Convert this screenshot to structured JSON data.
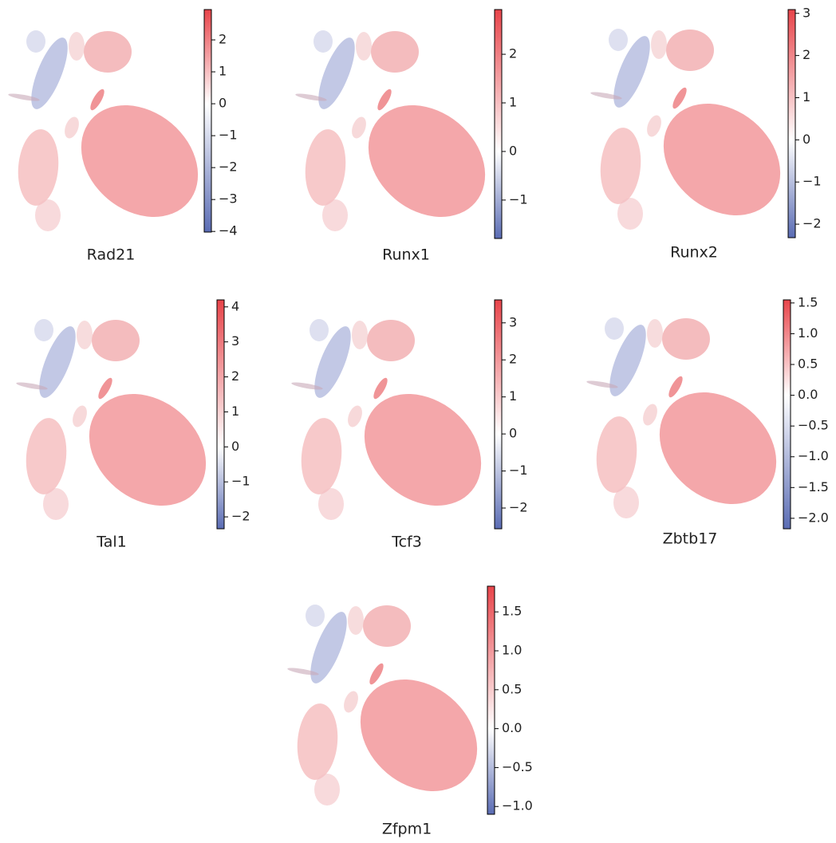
{
  "chart_data": [
    {
      "type": "embedding",
      "title": "Rad21",
      "colors": [
        "#5a6cb4",
        "#ffffff",
        "#e8444a"
      ],
      "clim": [
        -4.02,
        2.95
      ],
      "cticks": [
        {
          "value": -4,
          "label": "−4"
        },
        {
          "value": -3,
          "label": "−3"
        },
        {
          "value": -2,
          "label": "−2"
        },
        {
          "value": -1,
          "label": "−1"
        },
        0,
        1,
        2
      ]
    },
    {
      "type": "embedding",
      "title": "Runx1",
      "colors": [
        "#5a6cb4",
        "#ffffff",
        "#e8444a"
      ],
      "clim": [
        -1.79,
        2.92
      ],
      "cticks": [
        {
          "value": -1,
          "label": "−1"
        },
        0,
        1,
        2
      ]
    },
    {
      "type": "embedding",
      "title": "Runx2",
      "colors": [
        "#5a6cb4",
        "#ffffff",
        "#e8444a"
      ],
      "clim": [
        -2.32,
        3.09
      ],
      "cticks": [
        {
          "value": -2,
          "label": "−2"
        },
        {
          "value": -1,
          "label": "−1"
        },
        0,
        1,
        2,
        3
      ]
    },
    {
      "type": "embedding",
      "title": "Tal1",
      "colors": [
        "#5a6cb4",
        "#ffffff",
        "#e8444a"
      ],
      "clim": [
        -2.34,
        4.2
      ],
      "cticks": [
        {
          "value": -2,
          "label": "−2"
        },
        {
          "value": -1,
          "label": "−1"
        },
        0,
        1,
        2,
        3,
        4
      ]
    },
    {
      "type": "embedding",
      "title": "Tcf3",
      "colors": [
        "#5a6cb4",
        "#ffffff",
        "#e8444a"
      ],
      "clim": [
        -2.56,
        3.62
      ],
      "cticks": [
        {
          "value": -2,
          "label": "−2"
        },
        {
          "value": -1,
          "label": "−1"
        },
        0,
        1,
        2,
        3
      ]
    },
    {
      "type": "embedding",
      "title": "Zbtb17",
      "colors": [
        "#5a6cb4",
        "#ffffff",
        "#e8444a"
      ],
      "clim": [
        -2.17,
        1.55
      ],
      "cticks": [
        {
          "value": -2,
          "label": "−2.0"
        },
        {
          "value": -1.5,
          "label": "−1.5"
        },
        {
          "value": -1,
          "label": "−1.0"
        },
        {
          "value": -0.5,
          "label": "−0.5"
        },
        {
          "value": 0,
          "label": "0.0"
        },
        0.5,
        {
          "value": 1,
          "label": "1.0"
        },
        1.5
      ]
    },
    {
      "type": "embedding",
      "title": "Zfpm1",
      "colors": [
        "#5a6cb4",
        "#ffffff",
        "#e8444a"
      ],
      "clim": [
        -1.1,
        1.83
      ],
      "cticks": [
        {
          "value": -1,
          "label": "−1.0"
        },
        {
          "value": -0.5,
          "label": "−0.5"
        },
        {
          "value": 0,
          "label": "0.0"
        },
        0.5,
        {
          "value": 1,
          "label": "1.0"
        },
        1.5
      ]
    }
  ]
}
